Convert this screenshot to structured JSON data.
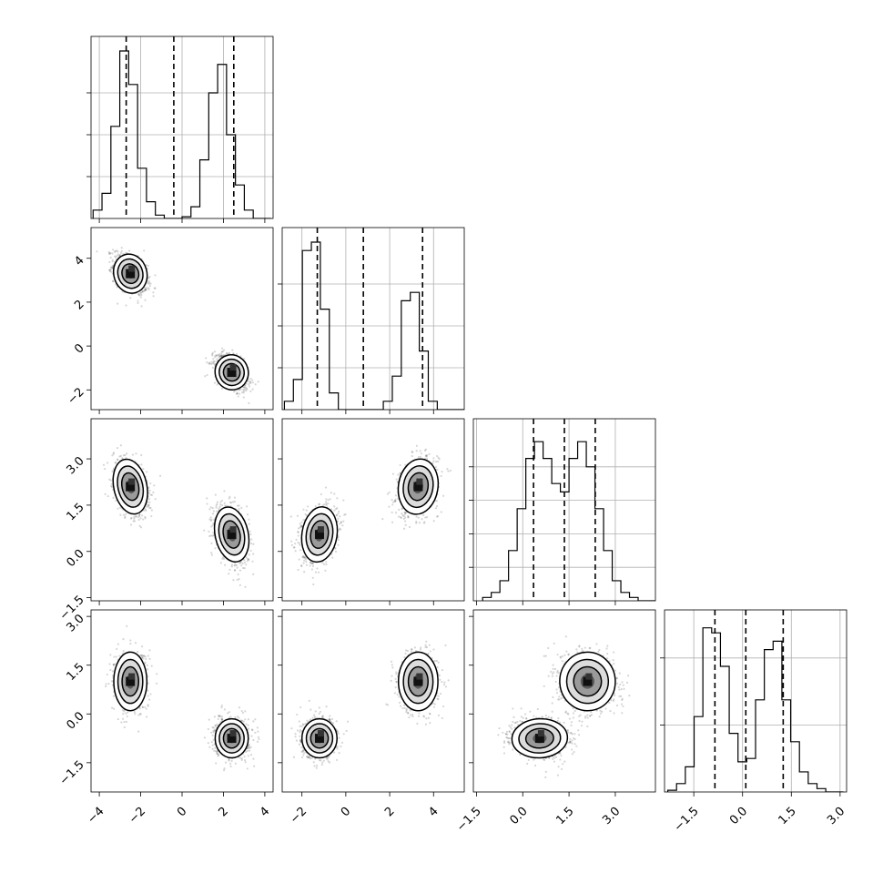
{
  "chart_data": {
    "type": "corner",
    "title": "",
    "dimensions": [
      {
        "range": [
          -4.4,
          4.4
        ],
        "ticks": [
          -4,
          -2,
          0,
          2,
          4
        ],
        "tick_labels": [
          "−4",
          "−2",
          "0",
          "2",
          "4"
        ],
        "quantiles": [
          -2.7,
          -0.4,
          2.5
        ],
        "hist_start": -4.3,
        "hist_step": 0.43,
        "hist_counts": [
          0.05,
          0.15,
          0.55,
          1.0,
          0.8,
          0.3,
          0.1,
          0.02,
          0.0,
          0.0,
          0.01,
          0.07,
          0.35,
          0.75,
          0.92,
          0.5,
          0.2,
          0.05,
          0.0,
          0.0
        ],
        "hist_ticks": [
          0.25,
          0.5,
          0.75
        ],
        "modes": [
          -2.5,
          2.4
        ]
      },
      {
        "range": [
          -2.9,
          5.4
        ],
        "ticks": [
          -2,
          0,
          2,
          4
        ],
        "tick_labels": [
          "−2",
          "0",
          "2",
          "4"
        ],
        "quantiles": [
          -1.3,
          0.8,
          3.5
        ],
        "hist_start": -2.8,
        "hist_step": 0.41,
        "hist_counts": [
          0.05,
          0.18,
          0.95,
          1.0,
          0.6,
          0.1,
          0.0,
          0.0,
          0.0,
          0.0,
          0.0,
          0.05,
          0.2,
          0.65,
          0.7,
          0.35,
          0.05,
          0.0,
          0.0,
          0.0
        ],
        "hist_ticks": [
          0.25,
          0.5,
          0.75
        ],
        "modes": [
          3.3,
          -1.2
        ]
      },
      {
        "range": [
          -1.6,
          4.3
        ],
        "ticks": [
          -1.5,
          0.0,
          1.5,
          3.0
        ],
        "tick_labels": [
          "−1.5",
          "0.0",
          "1.5",
          "3.0"
        ],
        "quantiles": [
          0.35,
          1.35,
          2.35
        ],
        "hist_start": -1.3,
        "hist_step": 0.28,
        "hist_counts": [
          0.02,
          0.05,
          0.12,
          0.3,
          0.55,
          0.85,
          0.95,
          0.85,
          0.7,
          0.65,
          0.85,
          0.95,
          0.8,
          0.55,
          0.3,
          0.12,
          0.05,
          0.02,
          0.0,
          0.0
        ],
        "hist_ticks": [
          0.2,
          0.4,
          0.6,
          0.8
        ],
        "modes": [
          2.1,
          0.55
        ]
      },
      {
        "range": [
          -2.4,
          3.2
        ],
        "ticks": [
          -1.5,
          0.0,
          1.5,
          3.0
        ],
        "tick_labels": [
          "−1.5",
          "0.0",
          "1.5",
          "3.0"
        ],
        "quantiles": [
          -0.85,
          0.1,
          1.25
        ],
        "hist_start": -2.3,
        "hist_step": 0.27,
        "hist_counts": [
          0.01,
          0.05,
          0.15,
          0.45,
          0.98,
          0.95,
          0.75,
          0.35,
          0.18,
          0.2,
          0.55,
          0.85,
          0.9,
          0.55,
          0.3,
          0.12,
          0.05,
          0.02,
          0.0,
          0.0
        ],
        "hist_ticks": [
          0.4,
          0.8
        ],
        "modes": [
          1.0,
          -0.75
        ]
      }
    ],
    "clusters": [
      {
        "means": [
          -2.5,
          3.3,
          2.1,
          1.0
        ],
        "sd": [
          0.4,
          0.45,
          0.45,
          0.45
        ]
      },
      {
        "means": [
          2.4,
          -1.2,
          0.55,
          -0.75
        ],
        "sd": [
          0.4,
          0.4,
          0.45,
          0.3
        ]
      }
    ],
    "grid": true,
    "contour_levels": 3
  }
}
